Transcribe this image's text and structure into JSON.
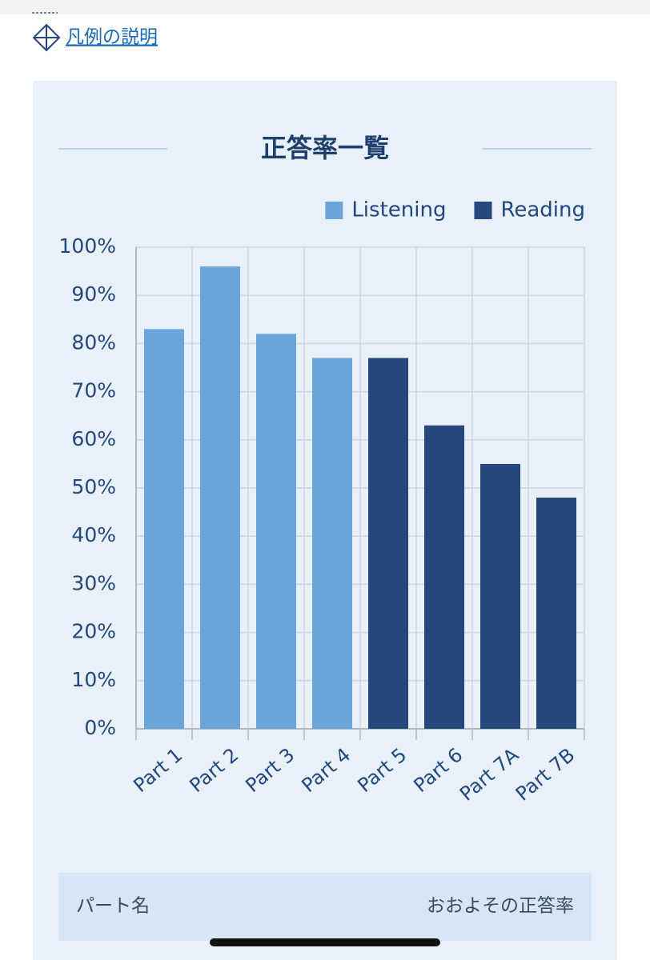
{
  "link_text": "凡例の説明",
  "chart_data": {
    "type": "bar",
    "title": "正答率一覧",
    "categories": [
      "Part 1",
      "Part 2",
      "Part 3",
      "Part 4",
      "Part 5",
      "Part 6",
      "Part 7A",
      "Part 7B"
    ],
    "series": [
      {
        "name": "Listening",
        "color": "#6ba5da",
        "values": [
          83,
          96,
          82,
          77,
          null,
          null,
          null,
          null
        ]
      },
      {
        "name": "Reading",
        "color": "#25477c",
        "values": [
          null,
          null,
          null,
          null,
          77,
          63,
          55,
          48
        ]
      }
    ],
    "ylim": [
      0,
      100
    ],
    "yticks": [
      {
        "value": 0,
        "label": "0%"
      },
      {
        "value": 10,
        "label": "10%"
      },
      {
        "value": 20,
        "label": "20%"
      },
      {
        "value": 30,
        "label": "30%"
      },
      {
        "value": 40,
        "label": "40%"
      },
      {
        "value": 50,
        "label": "50%"
      },
      {
        "value": 60,
        "label": "60%"
      },
      {
        "value": 70,
        "label": "70%"
      },
      {
        "value": 80,
        "label": "80%"
      },
      {
        "value": 90,
        "label": "90%"
      },
      {
        "value": 100,
        "label": "100%"
      }
    ],
    "grid": true,
    "legend": "top-right"
  },
  "table_header": [
    "パート名",
    "おおよその正答率"
  ]
}
